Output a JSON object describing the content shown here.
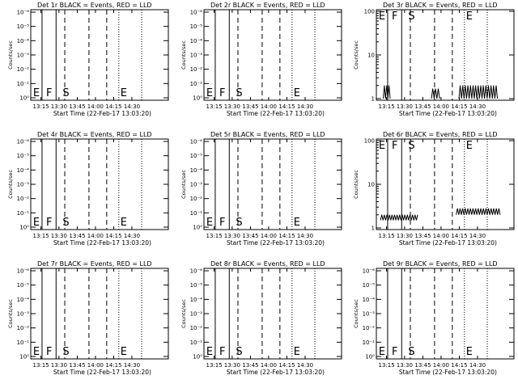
{
  "colors": {
    "background": "#ffffff",
    "axes": "#000000",
    "events": "#000000",
    "lld": "#ff0000"
  },
  "chart_data": [
    {
      "type": "line",
      "title": "Det 1r BLACK = Events, RED = LLD",
      "ylabel": "Counts/sec",
      "xlabel": "Start Time (22-Feb-17 13:03:20)",
      "xtick_labels": [
        "13:15",
        "13:30",
        "13:45",
        "14:00",
        "14:15",
        "14:30"
      ],
      "ytick_labels": [
        "10⁰",
        "10⁻¹",
        "10⁻²",
        "10⁻³",
        "10⁻⁴",
        "10⁻⁵",
        "10⁻⁶"
      ],
      "log_y": true,
      "markers": [
        "E",
        "F",
        "S",
        "E"
      ],
      "events": []
    },
    {
      "type": "line",
      "title": "Det 2r BLACK = Events, RED = LLD",
      "ylabel": "Counts/sec",
      "xlabel": "Start Time (22-Feb-17 13:03:20)",
      "xtick_labels": [
        "13:15",
        "13:30",
        "13:45",
        "14:00",
        "14:15",
        "14:30"
      ],
      "ytick_labels": [
        "10⁰",
        "10⁻¹",
        "10⁻²",
        "10⁻³",
        "10⁻⁴",
        "10⁻⁵",
        "10⁻⁶"
      ],
      "log_y": true,
      "markers": [
        "E",
        "F",
        "S",
        "E"
      ],
      "events": []
    },
    {
      "type": "line",
      "title": "Det 3r BLACK = Events, RED = LLD",
      "ylabel": "Counts/sec",
      "xlabel": "Start Time (22-Feb-17 13:03:20)",
      "xtick_labels": [
        "13:15",
        "13:30",
        "13:45",
        "14:00",
        "14:15",
        "14:30"
      ],
      "ytick_labels": [
        "1",
        "10",
        "100"
      ],
      "log_y": true,
      "markers": [
        "E",
        "F",
        "S",
        "E"
      ],
      "events": [
        {
          "x0": 0.05,
          "x1": 0.1,
          "base": 1,
          "peak": 2
        },
        {
          "x0": 0.4,
          "x1": 0.46,
          "base": 1,
          "peak": 1.7
        },
        {
          "x0": 0.6,
          "x1": 0.88,
          "base": 1,
          "peak": 2
        }
      ]
    },
    {
      "type": "line",
      "title": "Det 4r BLACK = Events, RED = LLD",
      "ylabel": "Counts/sec",
      "xlabel": "Start Time (22-Feb-17 13:03:20)",
      "xtick_labels": [
        "13:15",
        "13:30",
        "13:45",
        "14:00",
        "14:15",
        "14:30"
      ],
      "ytick_labels": [
        "10⁰",
        "10⁻¹",
        "10⁻²",
        "10⁻³",
        "10⁻⁴",
        "10⁻⁵",
        "10⁻⁶"
      ],
      "log_y": true,
      "markers": [
        "E",
        "F",
        "S",
        "E"
      ],
      "events": []
    },
    {
      "type": "line",
      "title": "Det 5r BLACK = Events, RED = LLD",
      "ylabel": "Counts/sec",
      "xlabel": "Start Time (22-Feb-17 13:03:20)",
      "xtick_labels": [
        "13:15",
        "13:30",
        "13:45",
        "14:00",
        "14:15",
        "14:30"
      ],
      "ytick_labels": [
        "10⁰",
        "10⁻¹",
        "10⁻²",
        "10⁻³",
        "10⁻⁴",
        "10⁻⁵",
        "10⁻⁶"
      ],
      "log_y": true,
      "markers": [
        "E",
        "F",
        "S",
        "E"
      ],
      "events": []
    },
    {
      "type": "line",
      "title": "Det 6r BLACK = Events, RED = LLD",
      "ylabel": "Counts/sec",
      "xlabel": "Start Time (22-Feb-17 13:03:20)",
      "xtick_labels": [
        "13:15",
        "13:30",
        "13:45",
        "14:00",
        "14:15",
        "14:30"
      ],
      "ytick_labels": [
        "1",
        "10",
        "100"
      ],
      "log_y": true,
      "markers": [
        "E",
        "F",
        "S",
        "E"
      ],
      "events": [
        {
          "x0": 0.03,
          "x1": 0.3,
          "base": 1.5,
          "peak": 2.0
        },
        {
          "x0": 0.58,
          "x1": 0.9,
          "base": 2.0,
          "peak": 2.8
        }
      ]
    },
    {
      "type": "line",
      "title": "Det 7r BLACK = Events, RED = LLD",
      "ylabel": "Counts/sec",
      "xlabel": "Start Time (22-Feb-17 13:03:20)",
      "xtick_labels": [
        "13:15",
        "13:30",
        "13:45",
        "14:00",
        "14:15",
        "14:30"
      ],
      "ytick_labels": [
        "10⁰",
        "10⁻¹",
        "10⁻²",
        "10⁻³",
        "10⁻⁴",
        "10⁻⁵",
        "10⁻⁶"
      ],
      "log_y": true,
      "markers": [
        "E",
        "F",
        "S",
        "E"
      ],
      "events": []
    },
    {
      "type": "line",
      "title": "Det 8r BLACK = Events, RED = LLD",
      "ylabel": "Counts/sec",
      "xlabel": "Start Time (22-Feb-17 13:03:20)",
      "xtick_labels": [
        "13:15",
        "13:30",
        "13:45",
        "14:00",
        "14:15",
        "14:30"
      ],
      "ytick_labels": [
        "10⁰",
        "10⁻¹",
        "10⁻²",
        "10⁻³",
        "10⁻⁴",
        "10⁻⁵",
        "10⁻⁶"
      ],
      "log_y": true,
      "markers": [
        "E",
        "F",
        "S",
        "E"
      ],
      "events": []
    },
    {
      "type": "line",
      "title": "Det 9r BLACK = Events, RED = LLD",
      "ylabel": "Counts/sec",
      "xlabel": "Start Time (22-Feb-17 13:03:20)",
      "xtick_labels": [
        "13:15",
        "13:30",
        "13:45",
        "14:00",
        "14:15",
        "14:30"
      ],
      "ytick_labels": [
        "10⁰",
        "10⁻¹",
        "10⁻²",
        "10⁻³",
        "10⁻⁴",
        "10⁻⁵",
        "10⁻⁶"
      ],
      "log_y": true,
      "markers": [
        "E",
        "F",
        "S",
        "E"
      ],
      "events": []
    }
  ]
}
